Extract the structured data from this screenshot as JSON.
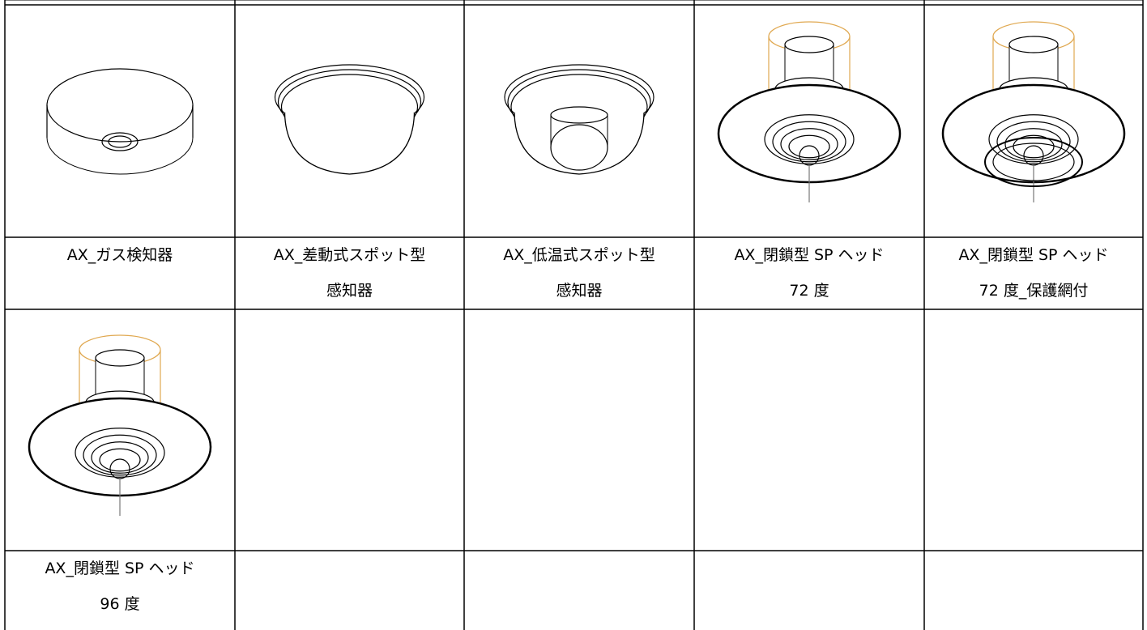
{
  "table": {
    "rows": [
      [
        [
          "AX_ガス検知器"
        ],
        [
          "AX_差動式スポット型",
          "感知器"
        ],
        [
          "AX_低温式スポット型",
          "感知器"
        ],
        [
          "AX_閉鎖型 SP ヘッド",
          "72 度"
        ],
        [
          "AX_閉鎖型 SP ヘッド",
          "72 度_保護網付"
        ]
      ],
      [
        [
          "AX_閉鎖型 SP ヘッド",
          "96 度"
        ]
      ]
    ]
  }
}
